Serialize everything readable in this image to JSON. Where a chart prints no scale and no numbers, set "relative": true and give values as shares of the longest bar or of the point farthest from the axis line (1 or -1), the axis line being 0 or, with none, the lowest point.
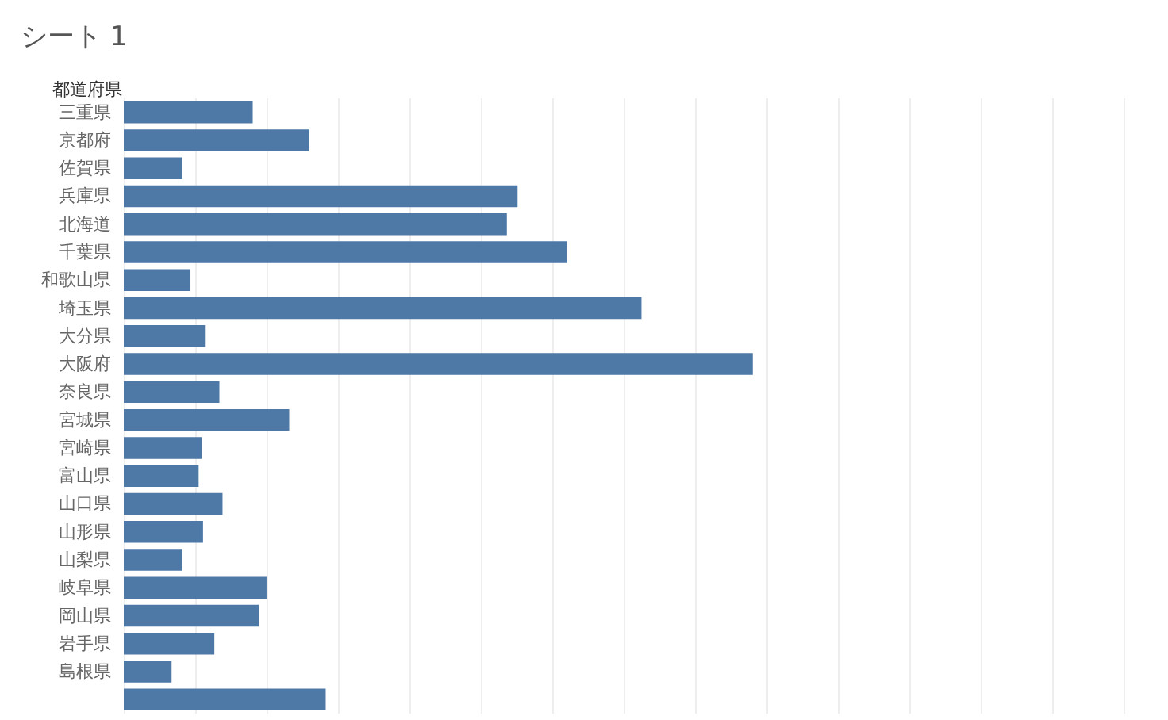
{
  "chart_data": {
    "type": "bar",
    "orientation": "horizontal",
    "relative": true,
    "title": "シート 1",
    "ylabel": "都道府県",
    "categories": [
      "三重県",
      "京都府",
      "佐賀県",
      "兵庫県",
      "北海道",
      "千葉県",
      "和歌山県",
      "埼玉県",
      "大分県",
      "大阪府",
      "奈良県",
      "宮城県",
      "宮崎県",
      "富山県",
      "山口県",
      "山形県",
      "山梨県",
      "岐阜県",
      "岡山県",
      "岩手県",
      "島根県",
      null
    ],
    "values": [
      0.205,
      0.295,
      0.093,
      0.626,
      0.609,
      0.705,
      0.106,
      0.823,
      0.129,
      1,
      0.152,
      0.263,
      0.124,
      0.119,
      0.157,
      0.126,
      0.093,
      0.227,
      0.215,
      0.144,
      0.076,
      0.321
    ],
    "color": "#4e79a7",
    "grid": "x"
  }
}
